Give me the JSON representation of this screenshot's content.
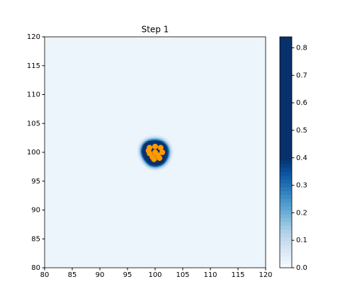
{
  "chart_data": {
    "type": "density-scatter",
    "title": "Step 1",
    "x": [
      99.0,
      100.0,
      101.0,
      101.3,
      100.5,
      99.5,
      99.0,
      100.0,
      100.8,
      99.8,
      98.8
    ],
    "y": [
      100.8,
      101.0,
      100.8,
      100.0,
      99.5,
      99.2,
      99.8,
      100.0,
      99.0,
      98.8,
      100.3
    ],
    "color": "#ff9900",
    "cmap": "Blues",
    "xlim": [
      80,
      120
    ],
    "ylim": [
      80,
      120
    ],
    "xticks": [
      80,
      85,
      90,
      95,
      100,
      105,
      110,
      115,
      120
    ],
    "yticks": [
      80,
      85,
      90,
      95,
      100,
      105,
      110,
      115,
      120
    ],
    "colorbar": {
      "lim": [
        0,
        0.84
      ],
      "ticks": [
        {
          "value": 0,
          "label": "0.0"
        },
        0.1,
        0.2,
        0.3,
        0.4,
        0.5,
        0.6,
        0.7,
        0.8
      ]
    }
  }
}
